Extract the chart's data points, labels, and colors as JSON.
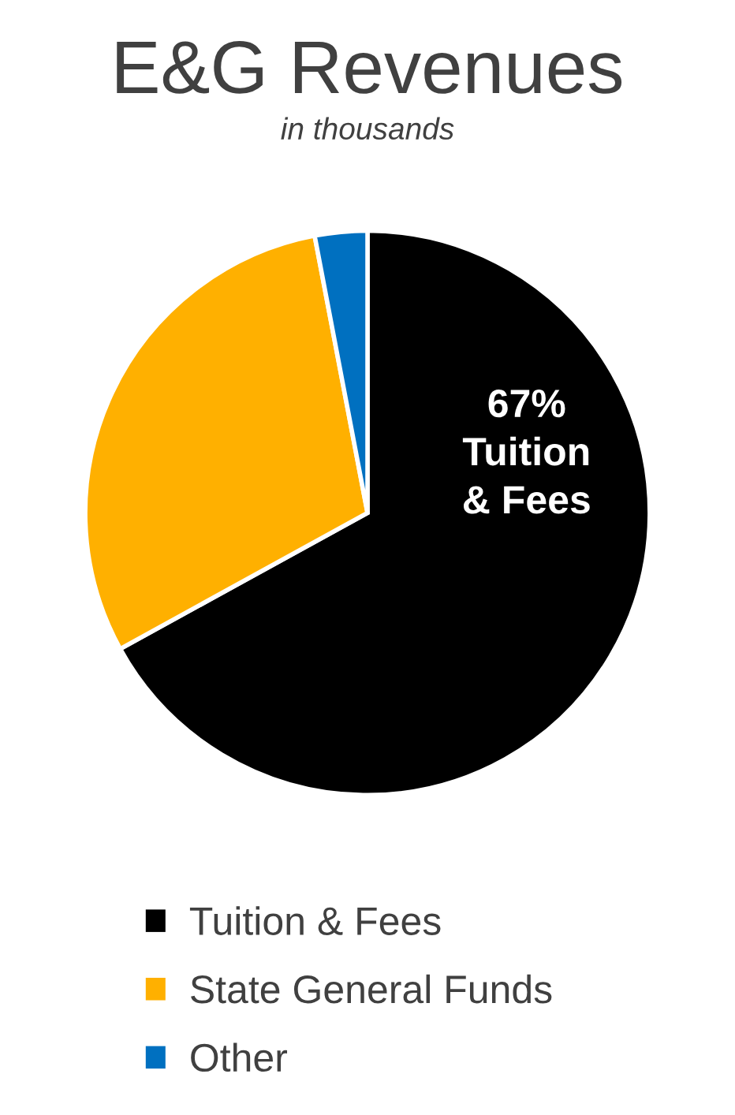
{
  "chart_data": {
    "type": "pie",
    "title": "E&G Revenues",
    "subtitle": "in thousands",
    "categories": [
      "Tuition & Fees",
      "State General Funds",
      "Other"
    ],
    "values": [
      67,
      30,
      3
    ],
    "colors": [
      "#000000",
      "#ffb000",
      "#0070c0"
    ],
    "value_labels": [
      "67%\nTuition\n& Fees",
      null,
      null
    ],
    "legend": "bottom"
  }
}
